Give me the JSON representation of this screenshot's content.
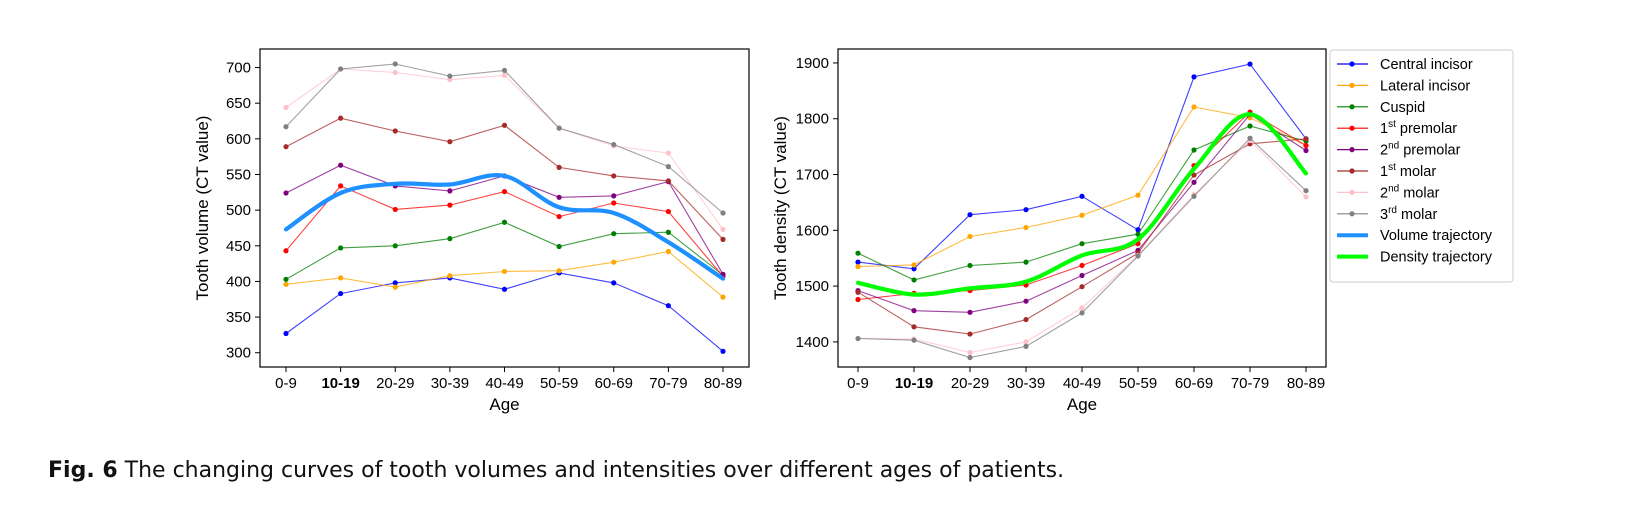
{
  "caption": {
    "label": "Fig. 6",
    "text": "The changing curves of tooth volumes and intensities over different ages of patients."
  },
  "legend": {
    "entries": [
      {
        "base": "Central incisor",
        "sup": "",
        "rest": "",
        "color": "#0000ff",
        "kind": "thin"
      },
      {
        "base": "Lateral incisor",
        "sup": "",
        "rest": "",
        "color": "#ffa500",
        "kind": "thin"
      },
      {
        "base": "Cuspid",
        "sup": "",
        "rest": "",
        "color": "#008000",
        "kind": "thin"
      },
      {
        "base": "1",
        "sup": "st",
        "rest": " premolar",
        "color": "#ff0000",
        "kind": "thin"
      },
      {
        "base": "2",
        "sup": "nd",
        "rest": " premolar",
        "color": "#800080",
        "kind": "thin"
      },
      {
        "base": "1",
        "sup": "st",
        "rest": " molar",
        "color": "#a52a2a",
        "kind": "thin"
      },
      {
        "base": "2",
        "sup": "nd",
        "rest": " molar",
        "color": "#ffc0cb",
        "kind": "thin"
      },
      {
        "base": "3",
        "sup": "rd",
        "rest": " molar",
        "color": "#808080",
        "kind": "thin"
      },
      {
        "base": "Volume trajectory",
        "sup": "",
        "rest": "",
        "color": "#1e90ff",
        "kind": "thick"
      },
      {
        "base": "Density trajectory",
        "sup": "",
        "rest": "",
        "color": "#00ff00",
        "kind": "thick"
      }
    ]
  },
  "chart_data": [
    {
      "type": "line",
      "xlabel": "Age",
      "ylabel": "Tooth volume (CT value)",
      "categories": [
        "0-9",
        "10-19",
        "20-29",
        "30-39",
        "40-49",
        "50-59",
        "60-69",
        "70-79",
        "80-89"
      ],
      "bold_categories": [
        "10-19"
      ],
      "ylim": [
        280,
        726
      ],
      "yticks": [
        300,
        350,
        400,
        450,
        500,
        550,
        600,
        650,
        700
      ],
      "series": [
        {
          "name": "Central incisor",
          "color": "#0000ff",
          "values": [
            327,
            383,
            398,
            405,
            389,
            412,
            398,
            366,
            302
          ]
        },
        {
          "name": "Lateral incisor",
          "color": "#ffa500",
          "values": [
            396,
            405,
            392,
            408,
            414,
            415,
            427,
            442,
            378
          ]
        },
        {
          "name": "Cuspid",
          "color": "#008000",
          "values": [
            403,
            447,
            450,
            460,
            483,
            449,
            467,
            469,
            409
          ]
        },
        {
          "name": "1st premolar",
          "color": "#ff0000",
          "values": [
            443,
            534,
            501,
            507,
            526,
            491,
            510,
            498,
            407
          ]
        },
        {
          "name": "2nd premolar",
          "color": "#800080",
          "values": [
            524,
            563,
            534,
            527,
            548,
            518,
            520,
            540,
            410
          ]
        },
        {
          "name": "1st molar",
          "color": "#a52a2a",
          "values": [
            589,
            629,
            611,
            596,
            619,
            560,
            548,
            541,
            459
          ]
        },
        {
          "name": "2nd molar",
          "color": "#ffc0cb",
          "values": [
            644,
            698,
            693,
            683,
            689,
            615,
            590,
            580,
            473
          ]
        },
        {
          "name": "3rd molar",
          "color": "#808080",
          "values": [
            617,
            698,
            705,
            688,
            696,
            615,
            592,
            561,
            496
          ]
        }
      ],
      "trajectory": {
        "name": "Volume trajectory",
        "color": "#1e90ff",
        "values": [
          473,
          524,
          537,
          536,
          548,
          504,
          496,
          455,
          404
        ]
      }
    },
    {
      "type": "line",
      "xlabel": "Age",
      "ylabel": "Tooth density (CT value)",
      "categories": [
        "0-9",
        "10-19",
        "20-29",
        "30-39",
        "40-49",
        "50-59",
        "60-69",
        "70-79",
        "80-89"
      ],
      "bold_categories": [
        "10-19"
      ],
      "ylim": [
        1355,
        1925
      ],
      "yticks": [
        1400,
        1500,
        1600,
        1700,
        1800,
        1900
      ],
      "series": [
        {
          "name": "Central incisor",
          "color": "#0000ff",
          "values": [
            1543,
            1531,
            1628,
            1637,
            1661,
            1601,
            1875,
            1898,
            1764
          ]
        },
        {
          "name": "Lateral incisor",
          "color": "#ffa500",
          "values": [
            1535,
            1538,
            1589,
            1605,
            1627,
            1663,
            1821,
            1802,
            1752
          ]
        },
        {
          "name": "Cuspid",
          "color": "#008000",
          "values": [
            1559,
            1511,
            1537,
            1543,
            1576,
            1593,
            1744,
            1787,
            1760
          ]
        },
        {
          "name": "1st premolar",
          "color": "#ff0000",
          "values": [
            1476,
            1487,
            1492,
            1502,
            1537,
            1576,
            1716,
            1812,
            1752
          ]
        },
        {
          "name": "2nd premolar",
          "color": "#800080",
          "values": [
            1492,
            1456,
            1453,
            1473,
            1519,
            1564,
            1686,
            1808,
            1743
          ]
        },
        {
          "name": "1st molar",
          "color": "#a52a2a",
          "values": [
            1489,
            1427,
            1414,
            1440,
            1499,
            1559,
            1699,
            1755,
            1764
          ]
        },
        {
          "name": "2nd molar",
          "color": "#ffc0cb",
          "values": [
            1406,
            1405,
            1381,
            1400,
            1461,
            1555,
            1664,
            1761,
            1660
          ]
        },
        {
          "name": "3rd molar",
          "color": "#808080",
          "values": [
            1406,
            1403,
            1372,
            1392,
            1452,
            1554,
            1661,
            1765,
            1671
          ]
        }
      ],
      "trajectory": {
        "name": "Density trajectory",
        "color": "#00ff00",
        "values": [
          1506,
          1485,
          1496,
          1508,
          1555,
          1584,
          1710,
          1808,
          1702
        ]
      }
    }
  ]
}
